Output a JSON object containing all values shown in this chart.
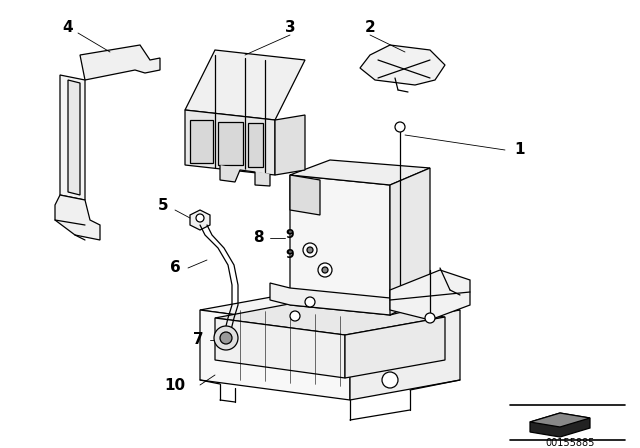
{
  "bg_color": "#ffffff",
  "lc": "#000000",
  "diagram_code": "00155885",
  "figsize": [
    6.4,
    4.48
  ],
  "dpi": 100
}
